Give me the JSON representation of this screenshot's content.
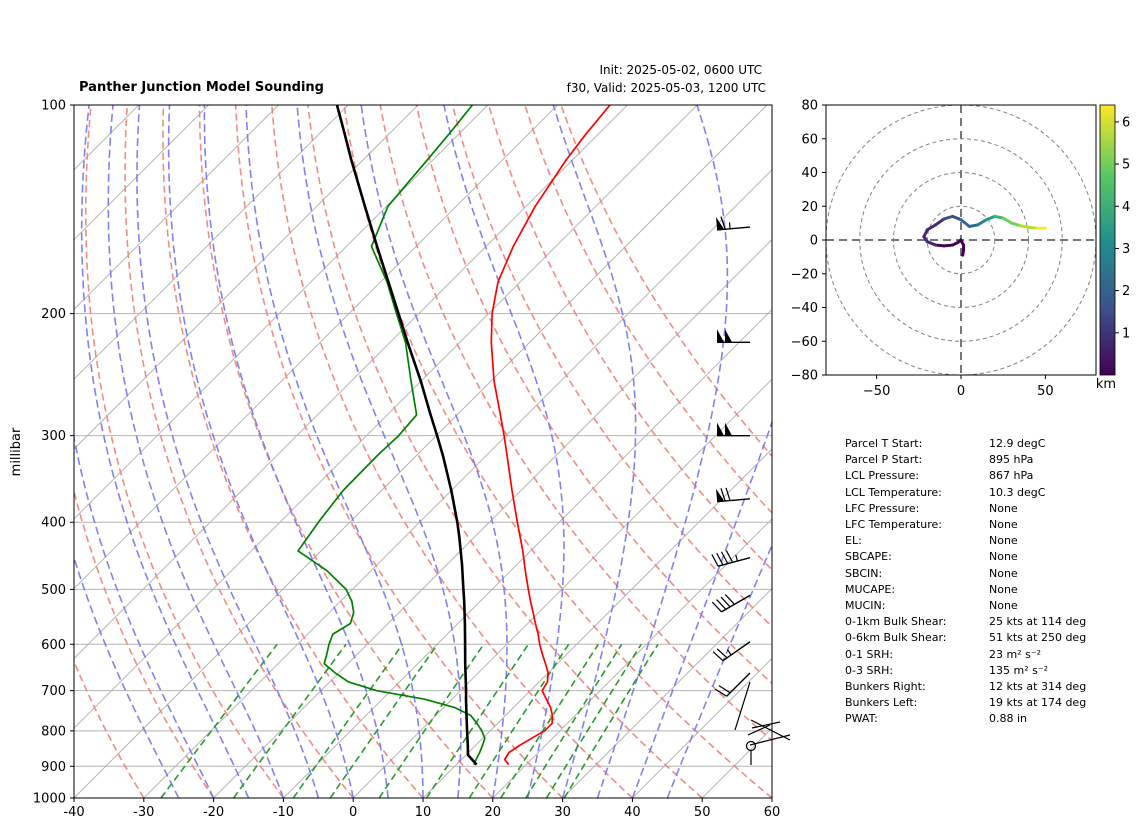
{
  "title": "Panther Junction Model Sounding",
  "init_text": "Init: 2025-05-02, 0600 UTC",
  "valid_text": "f30, Valid: 2025-05-03, 1200 UTC",
  "ylabel": "millibar",
  "hodo_cbar_label": "km",
  "colors": {
    "temperature": "#ff0000",
    "dewpoint": "#008000",
    "parcel": "#000000",
    "dry_adiabat": "#f0857d",
    "moist_adiabat": "#7a7af0",
    "mixing_ratio": "#2a9a2a"
  },
  "params": [
    {
      "label": "Parcel T Start:",
      "value": "12.9 degC"
    },
    {
      "label": "Parcel P Start:",
      "value": "895 hPa"
    },
    {
      "label": "LCL Pressure:",
      "value": "867 hPa"
    },
    {
      "label": "LCL Temperature:",
      "value": "10.3 degC"
    },
    {
      "label": "LFC Pressure:",
      "value": "None"
    },
    {
      "label": "LFC Temperature:",
      "value": "None"
    },
    {
      "label": "EL:",
      "value": "None"
    },
    {
      "label": "SBCAPE:",
      "value": "None"
    },
    {
      "label": "SBCIN:",
      "value": "None"
    },
    {
      "label": "MUCAPE:",
      "value": "None"
    },
    {
      "label": "MUCIN:",
      "value": "None"
    },
    {
      "label": "0-1km Bulk Shear:",
      "value": "25 kts at 114 deg"
    },
    {
      "label": "0-6km Bulk Shear:",
      "value": "51 kts at 250 deg"
    },
    {
      "label": "0-1 SRH:",
      "value": "23 m² s⁻²"
    },
    {
      "label": "0-3 SRH:",
      "value": "135 m² s⁻²"
    },
    {
      "label": "Bunkers Right:",
      "value": "12 kts at 314 deg"
    },
    {
      "label": "Bunkers Left:",
      "value": "19 kts at 174 deg"
    },
    {
      "label": "PWAT:",
      "value": "0.88 in"
    }
  ],
  "chart_data": [
    {
      "type": "skewt",
      "xlabel": "",
      "ylabel": "millibar",
      "xlim": [
        -40,
        60
      ],
      "ylim": [
        1000,
        100
      ],
      "x_ticks": [
        "-40",
        "-30",
        "-20",
        "-10",
        "0",
        "10",
        "20",
        "30",
        "40",
        "50",
        "60"
      ],
      "y_ticks": [
        "100",
        "200",
        "300",
        "400",
        "500",
        "600",
        "700",
        "800",
        "900",
        "1000"
      ],
      "series": [
        {
          "p": [
            895,
            880,
            860,
            840,
            820,
            800,
            780,
            760,
            740,
            720,
            700,
            680,
            660,
            640,
            620,
            600,
            580,
            560,
            540,
            520,
            500,
            470,
            440,
            400,
            360,
            320,
            300,
            280,
            250,
            220,
            200,
            180,
            160,
            140,
            120,
            110,
            100
          ],
          "t": [
            17.5,
            16.2,
            15.8,
            16.3,
            17.0,
            17.8,
            17.8,
            16.7,
            15.3,
            13.5,
            11.7,
            11.2,
            10.0,
            8.3,
            6.5,
            4.7,
            3.0,
            1.1,
            -0.8,
            -2.8,
            -4.8,
            -7.9,
            -11.1,
            -16.0,
            -21.3,
            -27.1,
            -30.3,
            -33.8,
            -39.6,
            -45.5,
            -49.5,
            -53.2,
            -56.1,
            -58.7,
            -60.9,
            -61.8,
            -62.5
          ]
        },
        {
          "p": [
            895,
            880,
            860,
            840,
            820,
            800,
            780,
            760,
            740,
            720,
            700,
            680,
            660,
            640,
            620,
            600,
            580,
            560,
            540,
            520,
            500,
            470,
            440,
            400,
            360,
            320,
            300,
            280,
            250,
            220,
            200,
            180,
            160,
            140,
            120,
            110,
            100
          ],
          "td": [
            12.5,
            12.1,
            11.6,
            11.0,
            10.3,
            8.8,
            7.0,
            5.0,
            1.5,
            -4.0,
            -12.0,
            -17.3,
            -20.5,
            -23.4,
            -24.4,
            -25.5,
            -26.4,
            -25.4,
            -26.5,
            -28.4,
            -30.9,
            -36.3,
            -43.3,
            -44.5,
            -45.5,
            -45.6,
            -45.4,
            -45.8,
            -51.5,
            -57.8,
            -63.2,
            -69.1,
            -76.4,
            -79.8,
            -80.8,
            -81.4,
            -82.2
          ]
        },
        {
          "p": [
            895,
            867,
            840,
            800,
            760,
            720,
            700,
            680,
            640,
            600,
            560,
            520,
            500,
            460,
            420,
            400,
            360,
            320,
            300,
            280,
            250,
            220,
            200,
            180,
            160,
            140,
            120,
            110,
            100
          ],
          "parcel": [
            12.9,
            10.3,
            8.9,
            6.7,
            4.4,
            2.0,
            0.8,
            -0.5,
            -3.2,
            -6.0,
            -9.0,
            -12.3,
            -14.1,
            -17.9,
            -22.2,
            -24.6,
            -30.0,
            -36.3,
            -39.9,
            -43.8,
            -50.1,
            -57.5,
            -62.9,
            -68.9,
            -75.6,
            -83.1,
            -91.7,
            -96.4,
            -101.6
          ]
        }
      ],
      "wind_barbs": [
        {
          "p": 150,
          "speed_kt": 65,
          "dir_deg": 265
        },
        {
          "p": 220,
          "speed_kt": 100,
          "dir_deg": 270
        },
        {
          "p": 300,
          "speed_kt": 100,
          "dir_deg": 270
        },
        {
          "p": 370,
          "speed_kt": 70,
          "dir_deg": 265
        },
        {
          "p": 450,
          "speed_kt": 45,
          "dir_deg": 255
        },
        {
          "p": 510,
          "speed_kt": 40,
          "dir_deg": 240
        },
        {
          "p": 595,
          "speed_kt": 25,
          "dir_deg": 235
        },
        {
          "p": 660,
          "speed_kt": 20,
          "dir_deg": 225
        }
      ]
    },
    {
      "type": "hodograph",
      "xlim": [
        -80,
        80
      ],
      "ylim": [
        -80,
        80
      ],
      "x_ticks": [
        "−50",
        "0",
        "50"
      ],
      "y_ticks": [
        "80",
        "60",
        "40",
        "20",
        "0",
        "−20",
        "−40",
        "−60",
        "−80"
      ],
      "rings": [
        20,
        40,
        60,
        80
      ],
      "u": [
        1.0,
        1.5,
        1.5,
        0.0,
        -2.0,
        -5.0,
        -10.0,
        -15.0,
        -20.0,
        -22.0,
        -20.0,
        -15.0,
        -10.0,
        -5.0,
        0.0,
        5.0,
        10.0,
        15.0,
        20.0,
        25.0,
        30.0,
        35.0,
        40.0,
        45.0,
        50.0
      ],
      "v": [
        -9.0,
        -6.0,
        -3.0,
        0.0,
        -1.5,
        -3.0,
        -3.5,
        -3.0,
        -1.0,
        2.0,
        6.0,
        9.0,
        12.5,
        14.0,
        12.0,
        8.0,
        9.0,
        12.0,
        14.0,
        13.0,
        10.0,
        8.5,
        7.5,
        7.0,
        7.0
      ],
      "height_km": [
        0.05,
        0.1,
        0.2,
        0.3,
        0.4,
        0.5,
        0.6,
        0.7,
        0.8,
        0.9,
        1.0,
        1.2,
        1.5,
        1.8,
        2.1,
        2.5,
        3.0,
        3.5,
        4.0,
        4.5,
        5.0,
        5.3,
        5.6,
        5.9,
        6.2
      ],
      "colorbar_ticks": [
        "1",
        "2",
        "3",
        "4",
        "5",
        "6"
      ],
      "colorbar_range": [
        0,
        6.4
      ],
      "colorbar_label": "km"
    }
  ]
}
